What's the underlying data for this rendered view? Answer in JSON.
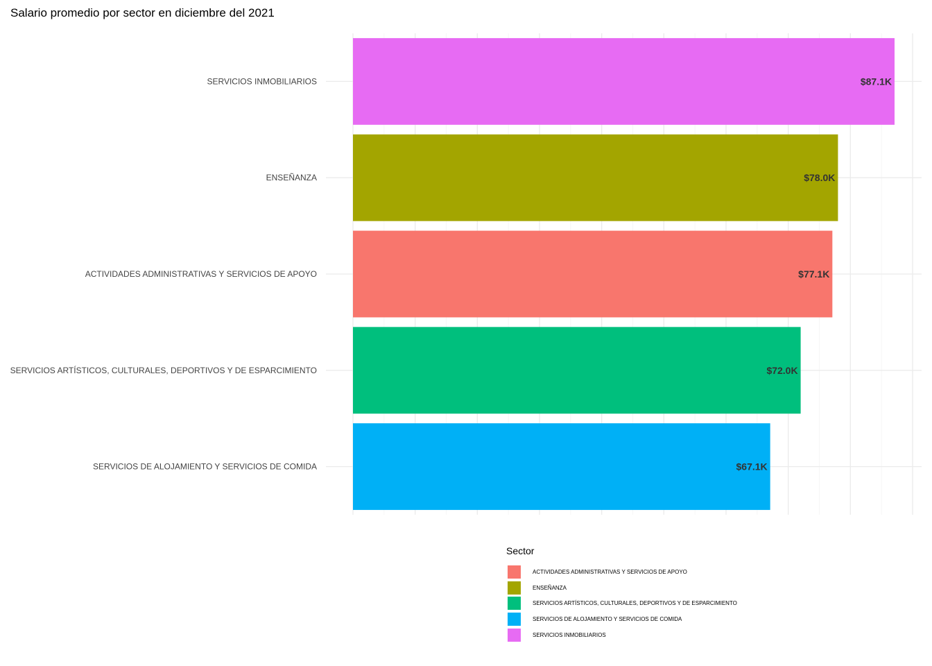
{
  "chart_data": {
    "type": "bar",
    "orientation": "horizontal",
    "title": "Salario promedio por sector en diciembre del 2021",
    "xlabel": "",
    "ylabel": "",
    "xlim": [
      0,
      90000
    ],
    "grid": true,
    "categories": [
      "SERVICIOS INMOBILIARIOS",
      "ENSEÑANZA",
      "ACTIVIDADES ADMINISTRATIVAS Y SERVICIOS DE APOYO",
      "SERVICIOS  ARTÍSTICOS, CULTURALES, DEPORTIVOS  Y DE ESPARCIMIENTO",
      "SERVICIOS DE ALOJAMIENTO Y SERVICIOS DE COMIDA"
    ],
    "values": [
      87100,
      78000,
      77100,
      72000,
      67100
    ],
    "data_labels": [
      "$87.1K",
      "$78.0K",
      "$77.1K",
      "$72.0K",
      "$67.1K"
    ],
    "colors": [
      "#E76BF3",
      "#A3A500",
      "#F8766D",
      "#00BF7D",
      "#00B0F6"
    ],
    "legend": {
      "title": "Sector",
      "position": "bottom",
      "items": [
        {
          "label": "ACTIVIDADES ADMINISTRATIVAS Y SERVICIOS DE APOYO",
          "color": "#F8766D"
        },
        {
          "label": "ENSEÑANZA",
          "color": "#A3A500"
        },
        {
          "label": "SERVICIOS  ARTÍSTICOS, CULTURALES, DEPORTIVOS  Y DE ESPARCIMIENTO",
          "color": "#00BF7D"
        },
        {
          "label": "SERVICIOS DE ALOJAMIENTO Y SERVICIOS DE COMIDA",
          "color": "#00B0F6"
        },
        {
          "label": "SERVICIOS INMOBILIARIOS",
          "color": "#E76BF3"
        }
      ]
    }
  }
}
